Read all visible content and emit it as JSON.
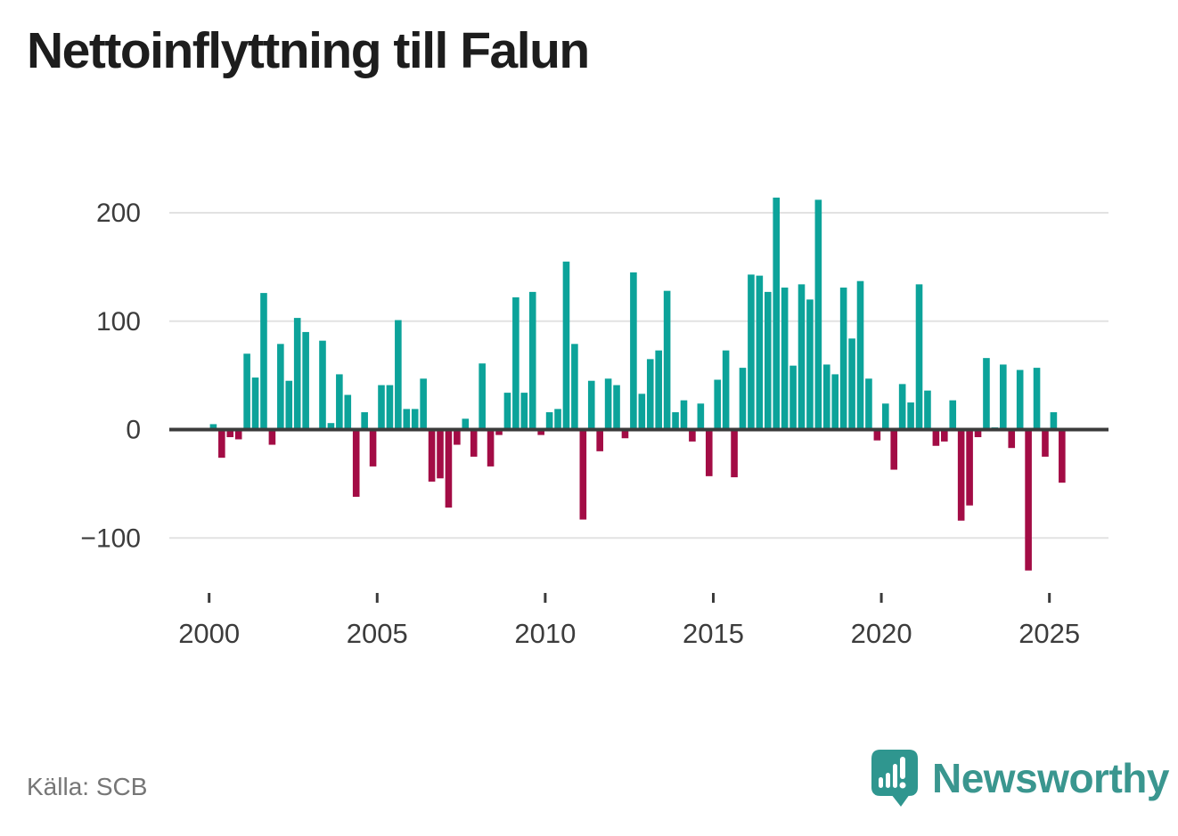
{
  "page": {
    "title": "Nettoinflyttning till Falun",
    "source": "Källa: SCB",
    "brand": "Newsworthy"
  },
  "colors": {
    "positive": "#0ca39a",
    "negative": "#a30c45",
    "axis": "#3b3b3b",
    "grid": "#e2e2e2",
    "tick_text": "#3c3c3c",
    "muted_text": "#767676",
    "brand_teal": "#2f968f"
  },
  "chart_data": {
    "type": "bar",
    "title": "Nettoinflyttning till Falun",
    "subtitle": "",
    "xlabel": "",
    "ylabel": "",
    "unit": "personer per kvartal (nettoinflyttning)",
    "frequency": "quarterly",
    "start_period": "2000-Q1",
    "end_period": "2025-Q2",
    "grid": true,
    "legend": "none",
    "ylim": [
      -150,
      235
    ],
    "y_ticks": [
      {
        "value": 200,
        "label": "200"
      },
      {
        "value": 100,
        "label": "100"
      },
      {
        "value": 0,
        "label": "0"
      },
      {
        "value": -100,
        "label": "−100"
      }
    ],
    "x_ticks": [
      {
        "year": 2000,
        "label": "2000"
      },
      {
        "year": 2005,
        "label": "2005"
      },
      {
        "year": 2010,
        "label": "2010"
      },
      {
        "year": 2015,
        "label": "2015"
      },
      {
        "year": 2020,
        "label": "2020"
      },
      {
        "year": 2025,
        "label": "2025"
      }
    ],
    "values": [
      5,
      -26,
      -7,
      -9,
      70,
      48,
      126,
      -14,
      79,
      45,
      103,
      90,
      0,
      82,
      6,
      51,
      32,
      -62,
      16,
      -34,
      41,
      41,
      101,
      19,
      19,
      47,
      -48,
      -45,
      -72,
      -14,
      10,
      -25,
      61,
      -34,
      -5,
      34,
      122,
      34,
      127,
      -5,
      16,
      19,
      155,
      79,
      -83,
      45,
      -20,
      47,
      41,
      -8,
      145,
      33,
      65,
      73,
      128,
      16,
      27,
      -11,
      24,
      -43,
      46,
      73,
      -44,
      57,
      143,
      142,
      127,
      214,
      131,
      59,
      134,
      120,
      212,
      60,
      51,
      131,
      84,
      137,
      47,
      -10,
      24,
      -37,
      42,
      25,
      134,
      36,
      -15,
      -11,
      27,
      -84,
      -70,
      -7,
      66,
      2,
      60,
      -17,
      55,
      -130,
      57,
      -25,
      16,
      -49
    ]
  }
}
